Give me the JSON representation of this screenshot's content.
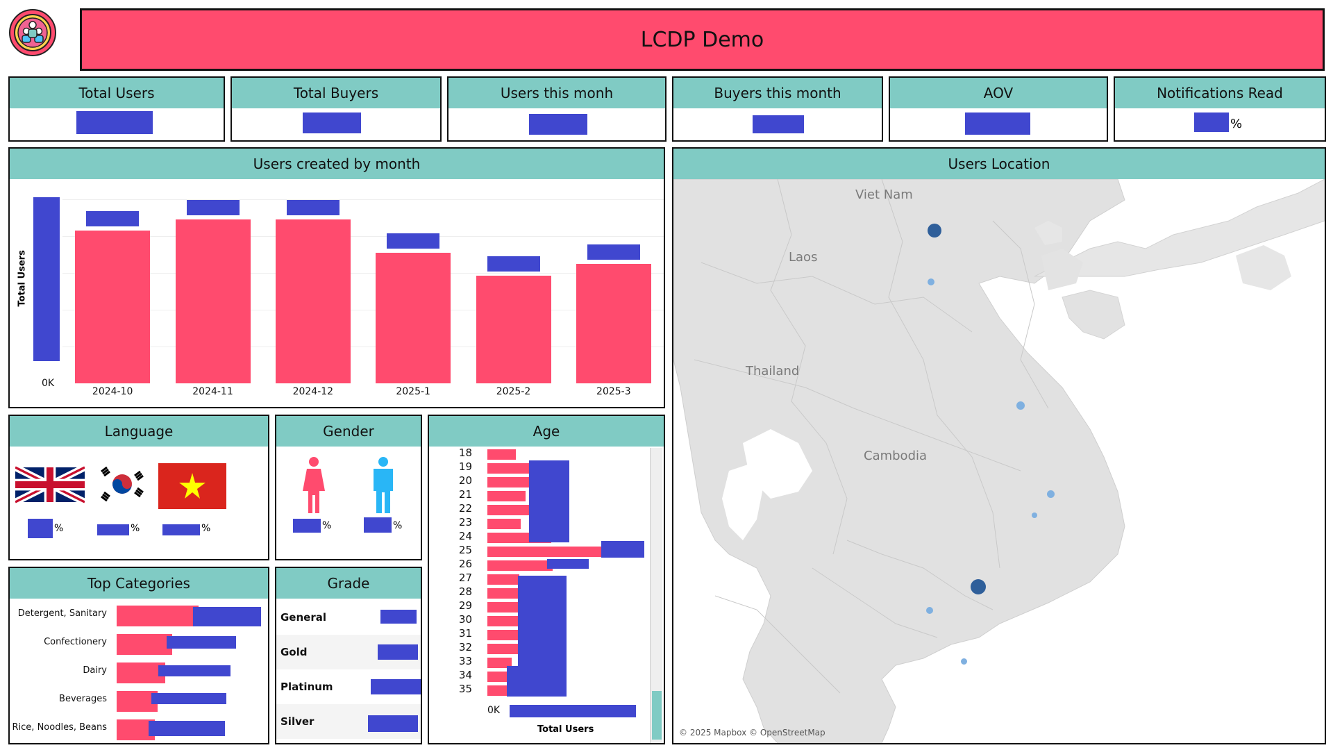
{
  "header": {
    "title": "LCDP Demo",
    "logo": "people-group-icon"
  },
  "kpis": [
    {
      "label": "Total Users"
    },
    {
      "label": "Total Buyers"
    },
    {
      "label": "Users this monh"
    },
    {
      "label": "Buyers this month"
    },
    {
      "label": "AOV"
    },
    {
      "label": "Notifications Read",
      "suffix": "%"
    }
  ],
  "users_by_month": {
    "title": "Users created by month",
    "ylabel": "Total Users",
    "ytick_zero": "0K"
  },
  "location": {
    "title": "Users Location",
    "labels": [
      "Viet Nam",
      "Laos",
      "Thailand",
      "Cambodia"
    ],
    "attribution": "© 2025 Mapbox © OpenStreetMap"
  },
  "language": {
    "title": "Language",
    "items": [
      {
        "icon": "uk-flag-icon",
        "suffix": "%"
      },
      {
        "icon": "korea-flag-icon",
        "suffix": "%"
      },
      {
        "icon": "vietnam-flag-icon",
        "suffix": "%"
      }
    ]
  },
  "gender": {
    "title": "Gender",
    "items": [
      {
        "icon": "female-icon",
        "suffix": "%"
      },
      {
        "icon": "male-icon",
        "suffix": "%"
      }
    ]
  },
  "age": {
    "title": "Age",
    "xlabel": "Total Users",
    "xtick_zero": "0K",
    "ages": [
      "18",
      "19",
      "20",
      "21",
      "22",
      "23",
      "24",
      "25",
      "26",
      "27",
      "28",
      "29",
      "30",
      "31",
      "32",
      "33",
      "34",
      "35"
    ]
  },
  "top_categories": {
    "title": "Top Categories",
    "items": [
      "Detergent, Sanitary",
      "Confectionery",
      "Dairy",
      "Beverages",
      "Rice, Noodles, Beans"
    ]
  },
  "grade": {
    "title": "Grade",
    "items": [
      "General",
      "Gold",
      "Platinum",
      "Silver"
    ]
  },
  "colors": {
    "header": "#ff4b6e",
    "card_head": "#80cbc4",
    "bar": "#ff4b6e",
    "redacted": "#4047cf",
    "map_dot": "#2f5f9a"
  },
  "chart_data": [
    {
      "type": "bar",
      "title": "Users created by month",
      "ylabel": "Total Users",
      "categories": [
        "2024-10",
        "2024-11",
        "2024-12",
        "2025-1",
        "2025-2",
        "2025-3"
      ],
      "values": [
        0.82,
        0.88,
        0.88,
        0.7,
        0.58,
        0.64
      ],
      "value_units": "fraction of axis maximum (axis values redacted)"
    },
    {
      "type": "bar",
      "title": "Age",
      "xlabel": "Total Users",
      "categories": [
        "18",
        "19",
        "20",
        "21",
        "22",
        "23",
        "24",
        "25",
        "26",
        "27",
        "28",
        "29",
        "30",
        "31",
        "32",
        "33",
        "34",
        "35"
      ],
      "values": [
        0.18,
        0.27,
        0.27,
        0.24,
        0.28,
        0.21,
        0.4,
        0.73,
        0.41,
        0.2,
        0.19,
        0.19,
        0.19,
        0.19,
        0.19,
        0.15,
        0.12,
        0.13
      ],
      "value_units": "fraction of axis maximum (axis values redacted)"
    },
    {
      "type": "bar",
      "title": "Top Categories",
      "categories": [
        "Detergent, Sanitary",
        "Confectionery",
        "Dairy",
        "Beverages",
        "Rice, Noodles, Beans"
      ],
      "values": [
        1.0,
        0.68,
        0.59,
        0.5,
        0.47
      ],
      "value_units": "fraction of largest category"
    }
  ]
}
